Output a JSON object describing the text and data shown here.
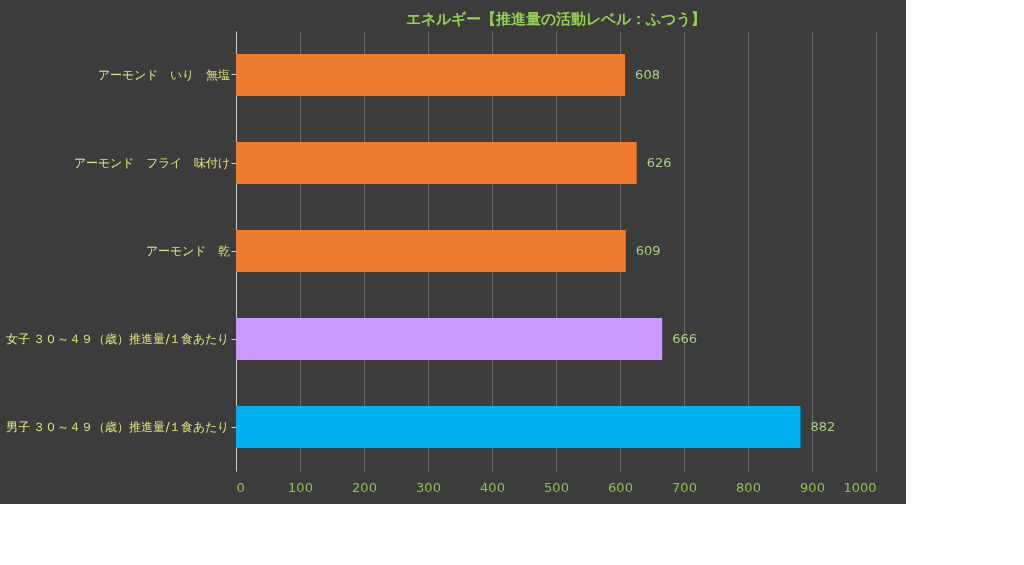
{
  "chart_data": {
    "type": "bar",
    "orientation": "horizontal",
    "title": "エネルギー【推進量の活動レベル：ふつう】",
    "categories": [
      "アーモンド　いり　無塩",
      "アーモンド　フライ　味付け",
      "アーモンド　乾",
      "女子 ３０～４９（歳）推進量/１食あたり",
      "男子 ３０～４９（歳）推進量/１食あたり"
    ],
    "values": [
      608,
      626,
      609,
      666,
      882
    ],
    "colors": [
      "#f07a2e",
      "#f07a2e",
      "#f07a2e",
      "#cc99ff",
      "#00b0f0"
    ],
    "xlim": [
      0,
      1000
    ],
    "xticks": [
      0,
      100,
      200,
      300,
      400,
      500,
      600,
      700,
      800,
      900,
      1000
    ],
    "grid": "x",
    "data_labels": true
  }
}
